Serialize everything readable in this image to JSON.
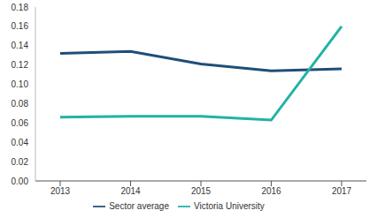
{
  "chart_data": {
    "type": "line",
    "categories": [
      "2013",
      "2014",
      "2015",
      "2016",
      "2017"
    ],
    "series": [
      {
        "name": "Sector average",
        "color": "#1f4e79",
        "values": [
          0.132,
          0.134,
          0.121,
          0.114,
          0.116
        ]
      },
      {
        "name": "Victoria University",
        "color": "#22b2a5",
        "values": [
          0.066,
          0.067,
          0.067,
          0.063,
          0.16
        ]
      }
    ],
    "ylim": [
      0,
      0.18
    ],
    "yticks": [
      {
        "value": 0,
        "label": "0.00"
      },
      0.02,
      0.04,
      0.06,
      0.08,
      {
        "value": 0.1,
        "label": "0.10"
      },
      0.12,
      0.14,
      0.16,
      0.18
    ],
    "grid": false,
    "legend": "bottom"
  }
}
